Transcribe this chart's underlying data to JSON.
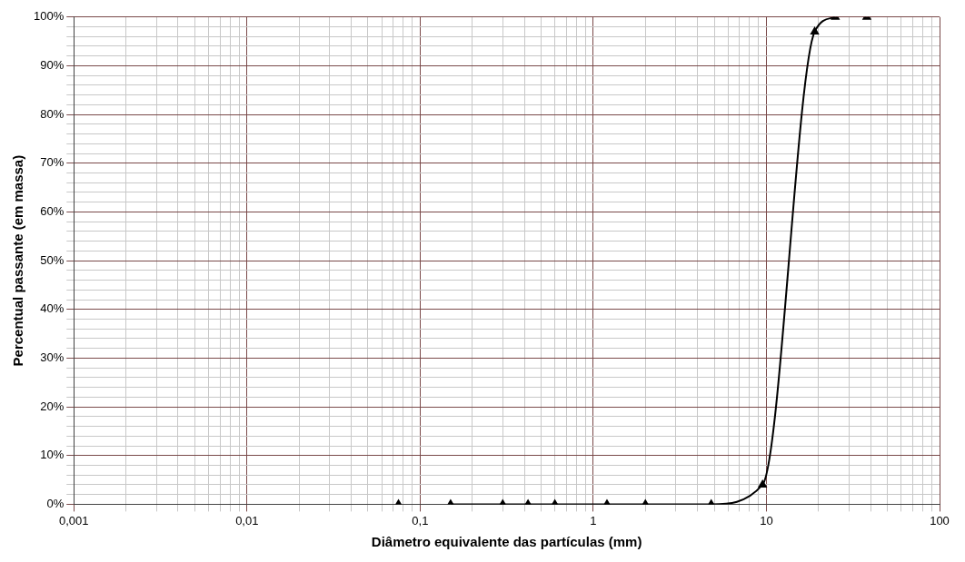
{
  "chart_data": {
    "type": "line",
    "xlabel": "Diâmetro equivalente das partículas (mm)",
    "ylabel": "Percentual passante (em massa)",
    "log": "x",
    "grid": true,
    "legend": false,
    "marker": "triangle",
    "line_style": "solid",
    "xlim": [
      0.001,
      100
    ],
    "ylim": [
      0,
      100
    ],
    "xticks": [
      {
        "value": 0.001,
        "label": "0,001"
      },
      {
        "value": 0.002,
        "label": null
      },
      {
        "value": 0.003,
        "label": null
      },
      {
        "value": 0.004,
        "label": null
      },
      {
        "value": 0.005,
        "label": null
      },
      {
        "value": 0.006,
        "label": null
      },
      {
        "value": 0.007,
        "label": null
      },
      {
        "value": 0.008,
        "label": null
      },
      {
        "value": 0.009,
        "label": null
      },
      {
        "value": 0.01,
        "label": "0,01"
      },
      {
        "value": 0.02,
        "label": null
      },
      {
        "value": 0.03,
        "label": null
      },
      {
        "value": 0.04,
        "label": null
      },
      {
        "value": 0.05,
        "label": null
      },
      {
        "value": 0.06,
        "label": null
      },
      {
        "value": 0.07,
        "label": null
      },
      {
        "value": 0.08,
        "label": null
      },
      {
        "value": 0.09,
        "label": null
      },
      {
        "value": 0.1,
        "label": "0,1"
      },
      {
        "value": 0.2,
        "label": null
      },
      {
        "value": 0.3,
        "label": null
      },
      {
        "value": 0.4,
        "label": null
      },
      {
        "value": 0.5,
        "label": null
      },
      {
        "value": 0.6,
        "label": null
      },
      {
        "value": 0.7,
        "label": null
      },
      {
        "value": 0.8,
        "label": null
      },
      {
        "value": 0.9,
        "label": null
      },
      1,
      {
        "value": 2,
        "label": null
      },
      {
        "value": 3,
        "label": null
      },
      {
        "value": 4,
        "label": null
      },
      {
        "value": 5,
        "label": null
      },
      {
        "value": 6,
        "label": null
      },
      {
        "value": 7,
        "label": null
      },
      {
        "value": 8,
        "label": null
      },
      {
        "value": 9,
        "label": null
      },
      10,
      {
        "value": 20,
        "label": null
      },
      {
        "value": 30,
        "label": null
      },
      {
        "value": 40,
        "label": null
      },
      {
        "value": 50,
        "label": null
      },
      {
        "value": 60,
        "label": null
      },
      {
        "value": 70,
        "label": null
      },
      {
        "value": 80,
        "label": null
      },
      {
        "value": 90,
        "label": null
      },
      100
    ],
    "yticks": [
      {
        "value": 0,
        "label": "0%"
      },
      {
        "value": 2,
        "label": null
      },
      {
        "value": 4,
        "label": null
      },
      {
        "value": 6,
        "label": null
      },
      {
        "value": 8,
        "label": null
      },
      {
        "value": 10,
        "label": "10%"
      },
      {
        "value": 12,
        "label": null
      },
      {
        "value": 14,
        "label": null
      },
      {
        "value": 16,
        "label": null
      },
      {
        "value": 18,
        "label": null
      },
      {
        "value": 20,
        "label": "20%"
      },
      {
        "value": 22,
        "label": null
      },
      {
        "value": 24,
        "label": null
      },
      {
        "value": 26,
        "label": null
      },
      {
        "value": 28,
        "label": null
      },
      {
        "value": 30,
        "label": "30%"
      },
      {
        "value": 32,
        "label": null
      },
      {
        "value": 34,
        "label": null
      },
      {
        "value": 36,
        "label": null
      },
      {
        "value": 38,
        "label": null
      },
      {
        "value": 40,
        "label": "40%"
      },
      {
        "value": 42,
        "label": null
      },
      {
        "value": 44,
        "label": null
      },
      {
        "value": 46,
        "label": null
      },
      {
        "value": 48,
        "label": null
      },
      {
        "value": 50,
        "label": "50%"
      },
      {
        "value": 52,
        "label": null
      },
      {
        "value": 54,
        "label": null
      },
      {
        "value": 56,
        "label": null
      },
      {
        "value": 58,
        "label": null
      },
      {
        "value": 60,
        "label": "60%"
      },
      {
        "value": 62,
        "label": null
      },
      {
        "value": 64,
        "label": null
      },
      {
        "value": 66,
        "label": null
      },
      {
        "value": 68,
        "label": null
      },
      {
        "value": 70,
        "label": "70%"
      },
      {
        "value": 72,
        "label": null
      },
      {
        "value": 74,
        "label": null
      },
      {
        "value": 76,
        "label": null
      },
      {
        "value": 78,
        "label": null
      },
      {
        "value": 80,
        "label": "80%"
      },
      {
        "value": 82,
        "label": null
      },
      {
        "value": 84,
        "label": null
      },
      {
        "value": 86,
        "label": null
      },
      {
        "value": 88,
        "label": null
      },
      {
        "value": 90,
        "label": "90%"
      },
      {
        "value": 92,
        "label": null
      },
      {
        "value": 94,
        "label": null
      },
      {
        "value": 96,
        "label": null
      },
      {
        "value": 98,
        "label": null
      },
      {
        "value": 100,
        "label": "100%"
      }
    ],
    "series": [
      {
        "type": "line",
        "color": "#000000",
        "x": [
          0.15,
          0.3,
          0.42,
          0.6,
          1.2,
          2,
          4.8,
          9.5,
          19,
          25
        ],
        "values": [
          0,
          0,
          0,
          0,
          0,
          0,
          0,
          4,
          97,
          100
        ]
      },
      {
        "type": "scatter",
        "color": "#000000",
        "x": [
          0.075,
          38
        ],
        "values": [
          0,
          100
        ]
      }
    ]
  }
}
